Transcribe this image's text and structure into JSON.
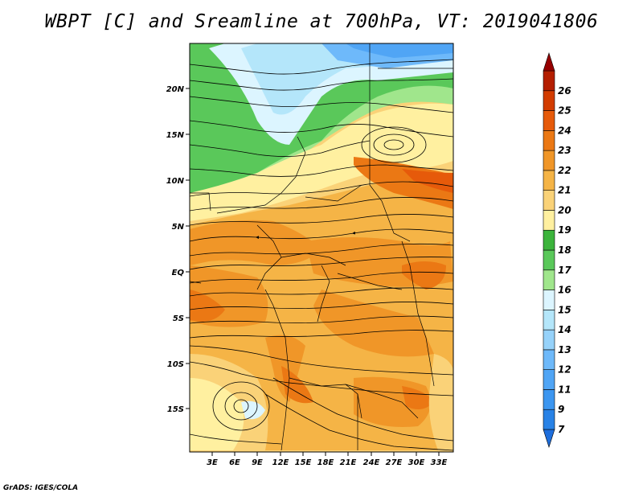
{
  "title": "WBPT [C] and Sreamline at 700hPa, VT: 2019041806",
  "footer": "GrADS: IGES/COLA",
  "map": {
    "lat_ticks": [
      "20N",
      "15N",
      "10N",
      "5N",
      "EQ",
      "5S",
      "10S",
      "15S"
    ],
    "lon_ticks": [
      "3E",
      "6E",
      "9E",
      "12E",
      "15E",
      "18E",
      "21E",
      "24E",
      "27E",
      "30E",
      "33E"
    ]
  },
  "colorbar": {
    "labels": [
      "7",
      "9",
      "11",
      "12",
      "13",
      "14",
      "15",
      "16",
      "17",
      "18",
      "19",
      "20",
      "21",
      "22",
      "23",
      "24",
      "25",
      "26"
    ],
    "colors": [
      "#1e6edc",
      "#2882e6",
      "#3c96f0",
      "#50a5f5",
      "#6eb9fa",
      "#96d2fa",
      "#b4e6fa",
      "#dcf5ff",
      "#a0e68c",
      "#5ac85a",
      "#3cb43c",
      "#fff0a0",
      "#fad278",
      "#f5b446",
      "#f09628",
      "#eb7814",
      "#e65a0a",
      "#d23c00",
      "#b41e00",
      "#960000"
    ]
  }
}
